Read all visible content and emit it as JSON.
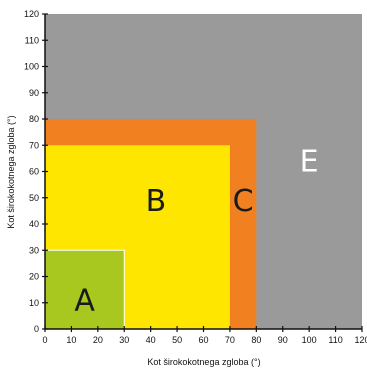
{
  "chart_data": {
    "type": "area",
    "xlabel": "Kot širokokotnega zgloba (°)",
    "ylabel": "Kot širokokotnega zgloba (°)",
    "xlim": [
      0,
      120
    ],
    "ylim": [
      0,
      120
    ],
    "xticks": [
      "0",
      "10",
      "20",
      "30",
      "40",
      "50",
      "60",
      "70",
      "80",
      "90",
      "100",
      "110",
      "120"
    ],
    "yticks": [
      "0",
      "10",
      "20",
      "30",
      "40",
      "50",
      "60",
      "70",
      "80",
      "90",
      "100",
      "110",
      "120"
    ],
    "zones": [
      {
        "label": "E",
        "x_max": 120,
        "y_max": 120,
        "color": "#9a9a9a",
        "label_color": "#ffffff"
      },
      {
        "label": "C",
        "x_max": 80,
        "y_max": 80,
        "color": "#f08020",
        "label_color": "#1a1a1a"
      },
      {
        "label": "B",
        "x_max": 70,
        "y_max": 70,
        "color": "#ffe600",
        "label_color": "#1a1a1a"
      },
      {
        "label": "A",
        "x_max": 30,
        "y_max": 30,
        "color": "#a8c820",
        "label_color": "#1a1a1a"
      }
    ],
    "grid": false
  }
}
